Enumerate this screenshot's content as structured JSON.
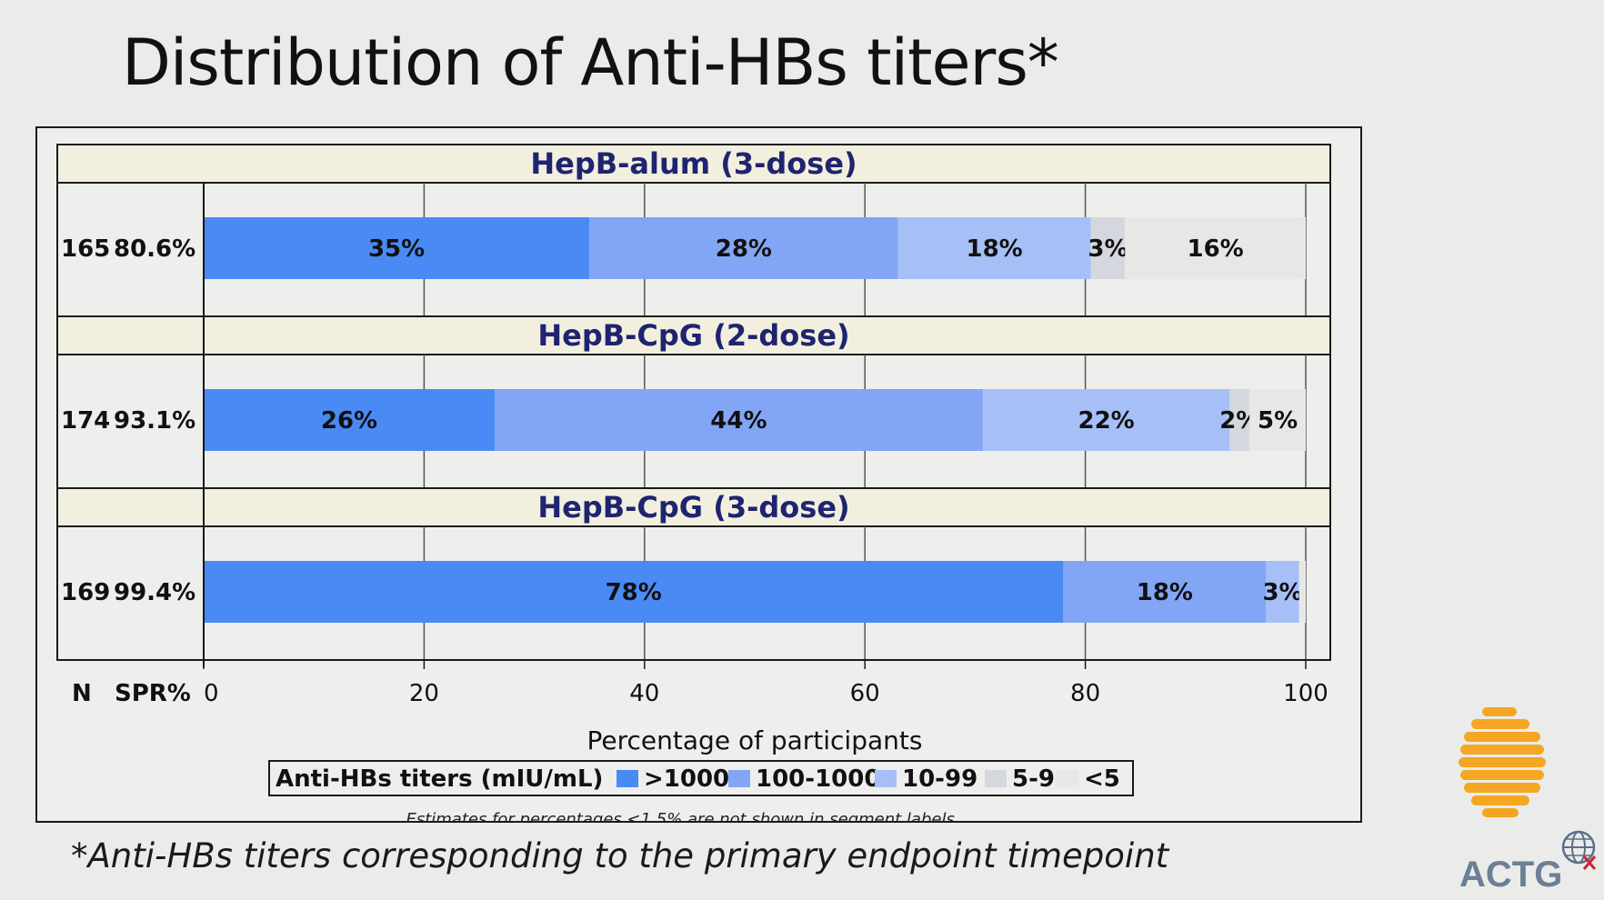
{
  "slide": {
    "title": "Distribution of Anti-HBs titers*",
    "footnote": "*Anti-HBs titers corresponding to the primary endpoint timepoint"
  },
  "logo": {
    "text": "ACTG",
    "color": "#6b7f96",
    "accent": "#f5a623",
    "icon": "actg-globe-icon"
  },
  "chart_data": {
    "type": "bar",
    "orientation": "horizontal-stacked",
    "xlabel": "Percentage of participants",
    "xlim": [
      0,
      100
    ],
    "xticks": [
      0,
      20,
      40,
      60,
      80,
      100
    ],
    "row_headers": [
      "N",
      "SPR%"
    ],
    "legend": {
      "title": "Anti-HBs titers (mIU/mL)",
      "placement": "bottom",
      "entries": [
        ">1000",
        "100-1000",
        "10-99",
        "5-9",
        "<5"
      ]
    },
    "colors": {
      ">1000": "#4a8af4",
      "100-1000": "#82a6f5",
      "10-99": "#a7bff7",
      "5-9": "#d5d7de",
      "<5": "#e7e8e6"
    },
    "note": "Estimates for percentages <1.5% are not shown in segment labels.",
    "panels": [
      {
        "title": "HepB-alum (3-dose)",
        "n": "165",
        "spr": "80.6%",
        "segments": [
          {
            "category": ">1000",
            "value": 35,
            "label": "35%"
          },
          {
            "category": "100-1000",
            "value": 28,
            "label": "28%"
          },
          {
            "category": "10-99",
            "value": 17.5,
            "label": "18%"
          },
          {
            "category": "5-9",
            "value": 3.1,
            "label": "3%"
          },
          {
            "category": "<5",
            "value": 16.4,
            "label": "16%"
          }
        ]
      },
      {
        "title": "HepB-CpG (2-dose)",
        "n": "174",
        "spr": "93.1%",
        "segments": [
          {
            "category": ">1000",
            "value": 26.4,
            "label": "26%"
          },
          {
            "category": "100-1000",
            "value": 44.3,
            "label": "44%"
          },
          {
            "category": "10-99",
            "value": 22.4,
            "label": "22%"
          },
          {
            "category": "5-9",
            "value": 1.8,
            "label": "2%"
          },
          {
            "category": "<5",
            "value": 5.1,
            "label": "5%"
          }
        ]
      },
      {
        "title": "HepB-CpG (3-dose)",
        "n": "169",
        "spr": "99.4%",
        "segments": [
          {
            "category": ">1000",
            "value": 78,
            "label": "78%"
          },
          {
            "category": "100-1000",
            "value": 18.4,
            "label": "18%"
          },
          {
            "category": "10-99",
            "value": 3,
            "label": "3%"
          },
          {
            "category": "5-9",
            "value": 0,
            "label": ""
          },
          {
            "category": "<5",
            "value": 0.6,
            "label": ""
          }
        ]
      }
    ]
  }
}
